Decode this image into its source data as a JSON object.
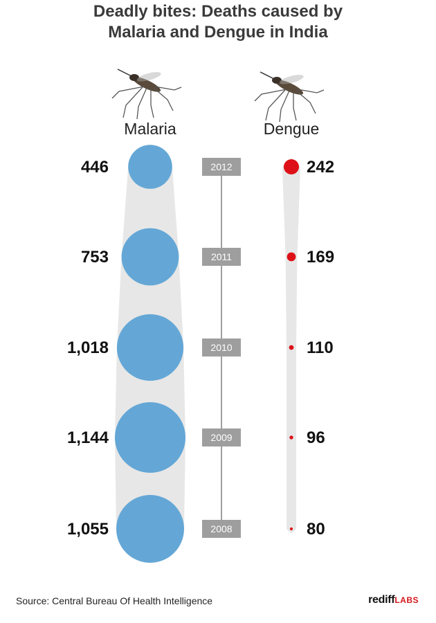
{
  "title_line1": "Deadly bites: Deaths caused by",
  "title_line2": "Malaria and Dengue in India",
  "source": "Source: Central Bureau Of Health Intelligence",
  "brand": {
    "name": "rediff",
    "suffix": "LABS"
  },
  "colors": {
    "malaria": "#64a7d6",
    "dengue": "#dd1117",
    "trail": "#e7e7e7",
    "year_box": "#9e9e9e",
    "axis": "#9e9e9e"
  },
  "chart_data": {
    "type": "bubble",
    "title": "Deadly bites: Deaths caused by Malaria and Dengue in India",
    "categories": [
      "2012",
      "2011",
      "2010",
      "2009",
      "2008"
    ],
    "series": [
      {
        "name": "Malaria",
        "values": [
          446,
          753,
          1018,
          1144,
          1055
        ],
        "labels": [
          "446",
          "753",
          "1,018",
          "1,144",
          "1,055"
        ],
        "color": "#64a7d6",
        "icon": "mosquito-icon"
      },
      {
        "name": "Dengue",
        "values": [
          242,
          169,
          110,
          96,
          80
        ],
        "labels": [
          "242",
          "169",
          "110",
          "96",
          "80"
        ],
        "color": "#dd1117",
        "icon": "mosquito-icon"
      }
    ]
  }
}
